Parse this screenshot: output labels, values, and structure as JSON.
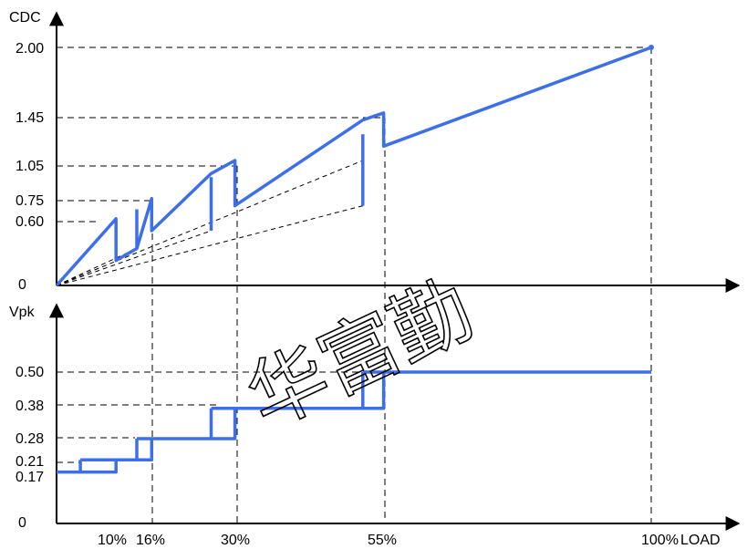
{
  "chart_data": [
    {
      "type": "line",
      "ylabel": "CDC",
      "yticks": [
        "0",
        "0.60",
        "0.75",
        "1.05",
        "1.45",
        "2.00"
      ],
      "series": [
        {
          "x": [
            0,
            10,
            10,
            13.5,
            16,
            16,
            26,
            30,
            30,
            51.5,
            55,
            55,
            100
          ],
          "y": [
            0,
            0.56,
            0.21,
            0.31,
            0.73,
            0.46,
            0.94,
            1.05,
            0.67,
            1.39,
            1.45,
            1.17,
            2.0
          ]
        }
      ],
      "guides": [
        {
          "x": [
            0,
            13.5
          ],
          "y": [
            0,
            0.31
          ]
        },
        {
          "x": [
            0,
            26
          ],
          "y": [
            0,
            0.46
          ]
        },
        {
          "x": [
            0,
            51.5
          ],
          "y": [
            0,
            0.67
          ]
        },
        {
          "x": [
            0,
            51.5
          ],
          "y": [
            0,
            1.05
          ]
        }
      ],
      "grid": false,
      "color": "#3d6fe8"
    },
    {
      "type": "line",
      "ylabel": "Vpk",
      "xlabel": "LOAD",
      "yticks": [
        "0",
        "0.17",
        "0.21",
        "0.28",
        "0.38",
        "0.50"
      ],
      "xticks": [
        "10%",
        "16%",
        "30%",
        "55%",
        "100%"
      ],
      "series": [
        {
          "x": [
            0,
            10,
            10,
            13.5,
            16,
            16,
            26,
            30,
            30,
            51.5,
            55,
            55,
            100
          ],
          "y": [
            0.17,
            0.17,
            0.21,
            0.21,
            0.21,
            0.28,
            0.28,
            0.28,
            0.38,
            0.38,
            0.38,
            0.5,
            0.5
          ]
        }
      ],
      "grid": false,
      "color": "#3d6fe8"
    }
  ],
  "watermark": "华富勤"
}
